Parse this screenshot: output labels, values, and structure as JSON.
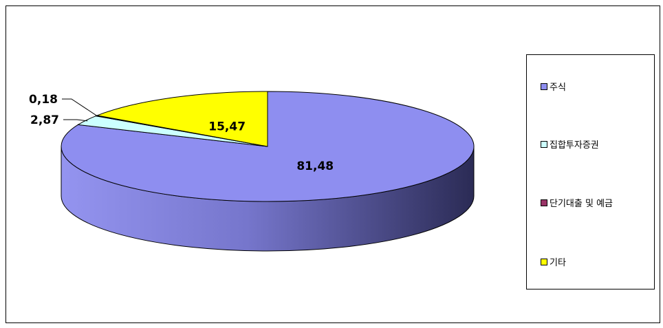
{
  "chart_data": {
    "type": "pie",
    "categories": [
      "주식",
      "집합투자증권",
      "단기대출 및 예금",
      "기타"
    ],
    "values": [
      81.48,
      2.87,
      0.18,
      15.47
    ],
    "data_labels": [
      "81,48",
      "2,87",
      "0,18",
      "15,47"
    ],
    "colors": [
      "#8e8ef0",
      "#ccffff",
      "#993366",
      "#ffff00"
    ],
    "three_d": true,
    "legend_position": "right"
  }
}
